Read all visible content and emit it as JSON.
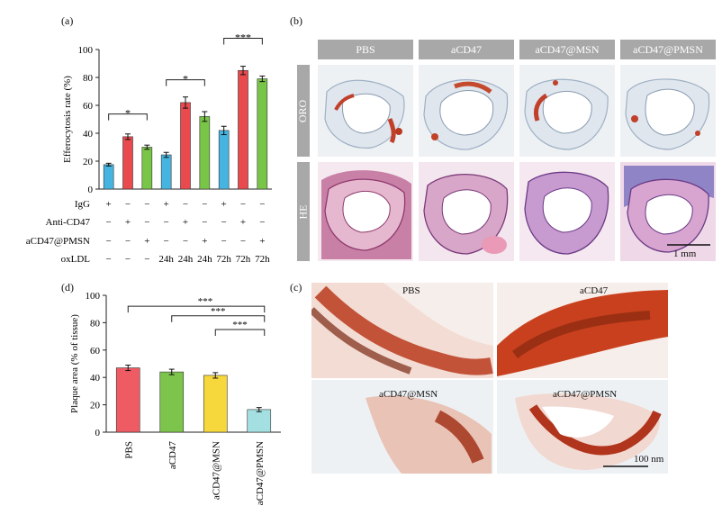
{
  "panels": {
    "a": "(a)",
    "b": "(b)",
    "c": "(c)",
    "d": "(d)"
  },
  "chart_data": [
    {
      "type": "bar",
      "ylabel": "Efferocytosis rate (%)",
      "ylim": [
        0,
        100
      ],
      "yticks": [
        0,
        20,
        40,
        60,
        80,
        100
      ],
      "values": [
        17.5,
        37.5,
        30,
        24.5,
        62,
        52,
        42,
        85,
        79
      ],
      "errors": [
        1,
        2,
        1.5,
        1.8,
        4,
        3.5,
        3,
        3,
        2
      ],
      "colors": [
        "#46b4e0",
        "#e84a4e",
        "#79c548",
        "#46b4e0",
        "#e84a4e",
        "#79c548",
        "#46b4e0",
        "#e84a4e",
        "#79c548"
      ],
      "condition_rows": [
        {
          "label": "IgG",
          "marks": [
            "+",
            "−",
            "−",
            "+",
            "−",
            "−",
            "+",
            "−",
            "−"
          ]
        },
        {
          "label": "Anti-CD47",
          "marks": [
            "−",
            "+",
            "−",
            "−",
            "+",
            "−",
            "−",
            "+",
            "−"
          ]
        },
        {
          "label": "aCD47@PMSN",
          "marks": [
            "−",
            "−",
            "+",
            "−",
            "−",
            "+",
            "−",
            "−",
            "+"
          ]
        },
        {
          "label": "oxLDL",
          "marks": [
            "−",
            "−",
            "−",
            "24h",
            "24h",
            "24h",
            "72h",
            "72h",
            "72h"
          ]
        }
      ],
      "significance": [
        {
          "from": 0,
          "to": 2,
          "label": "*"
        },
        {
          "from": 3,
          "to": 5,
          "label": "*"
        },
        {
          "from": 6,
          "to": 8,
          "label": "***"
        }
      ]
    },
    {
      "type": "bar",
      "ylabel": "Plaque area (% of tissue)",
      "ylim": [
        0,
        100
      ],
      "yticks": [
        0,
        20,
        40,
        60,
        80,
        100
      ],
      "categories": [
        "PBS",
        "aCD47",
        "aCD47@MSN",
        "aCD47@PMSN"
      ],
      "values": [
        47,
        44,
        41.5,
        16.5
      ],
      "errors": [
        2,
        2,
        2,
        1.5
      ],
      "colors": [
        "#ef5b63",
        "#7cc44c",
        "#f6d83c",
        "#a4e0e2"
      ],
      "significance": [
        {
          "from": 0,
          "to": 3,
          "label": "***"
        },
        {
          "from": 1,
          "to": 3,
          "label": "***"
        },
        {
          "from": 2,
          "to": 3,
          "label": "***"
        }
      ]
    }
  ],
  "histology": {
    "columns": [
      "PBS",
      "aCD47",
      "aCD47@MSN",
      "aCD47@PMSN"
    ],
    "rows": [
      "ORO",
      "HE"
    ],
    "scale_bar": "1 mm"
  },
  "micrographs": {
    "labels": [
      "PBS",
      "aCD47",
      "aCD47@MSN",
      "aCD47@PMSN"
    ],
    "scale_bar": "100 nm"
  }
}
